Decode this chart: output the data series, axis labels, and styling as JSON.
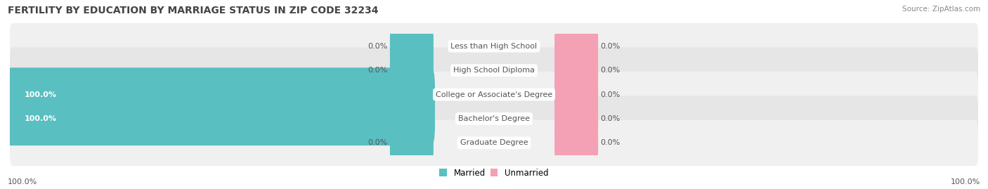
{
  "title": "FERTILITY BY EDUCATION BY MARRIAGE STATUS IN ZIP CODE 32234",
  "source": "Source: ZipAtlas.com",
  "categories": [
    "Less than High School",
    "High School Diploma",
    "College or Associate's Degree",
    "Bachelor's Degree",
    "Graduate Degree"
  ],
  "married": [
    0.0,
    0.0,
    100.0,
    100.0,
    0.0
  ],
  "unmarried": [
    0.0,
    0.0,
    0.0,
    0.0,
    0.0
  ],
  "married_color": "#59BFC0",
  "unmarried_color": "#F4A0B5",
  "row_bg_even": "#F0F0F0",
  "row_bg_odd": "#E6E6E6",
  "label_bg_color": "#FFFFFF",
  "stub_bar_size": 8.0,
  "title_fontsize": 10,
  "source_fontsize": 7.5,
  "axis_label_fontsize": 8,
  "bar_label_fontsize": 8,
  "category_fontsize": 8,
  "legend_fontsize": 8.5,
  "axis_left_label": "100.0%",
  "axis_right_label": "100.0%",
  "background_color": "#FFFFFF",
  "title_color": "#444444",
  "source_color": "#888888",
  "label_color": "#555555",
  "white_label_color": "#FFFFFF"
}
